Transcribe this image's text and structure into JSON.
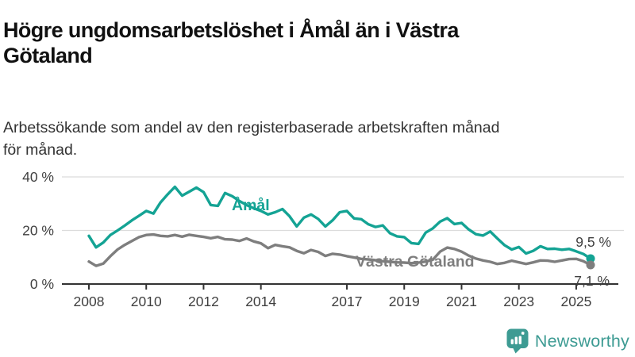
{
  "header": {
    "title": "Högre ungdomsarbetslöshet i Åmål än i Västra Götaland",
    "title_lines": [
      "Högre ungdomsarbetslöshet i Åmål än i Västra",
      "Götaland"
    ],
    "subtitle": "Arbetssökande som andel av den registerbaserade arbetskraften månad för månad.",
    "subtitle_lines": [
      "Arbetssökande som andel av den registerbaserade arbetskraften månad",
      "för månad."
    ]
  },
  "footer": {
    "brand": "Newsworthy",
    "logo_icon": "bar-chart-speech-bubble-icon",
    "brand_color": "#3d9b93"
  },
  "colors": {
    "accent_teal": "#14a394",
    "series_gray": "#7e7e7e",
    "grid": "#dcdcdc",
    "axis": "#333333",
    "label_text": "#3f3f3f"
  },
  "chart_data": {
    "type": "line",
    "title": "",
    "xlabel": "",
    "ylabel": "",
    "grid": "horizontal",
    "legend_position": "inline-labels",
    "x_unit": "decimal_year_monthly_series",
    "xlim": [
      2008,
      2025.5
    ],
    "ylim": [
      0,
      40
    ],
    "yticks": [
      {
        "value": 0,
        "label": "0 %"
      },
      {
        "value": 20,
        "label": "20 %"
      },
      {
        "value": 40,
        "label": "40 %"
      }
    ],
    "xticks": [
      "2008",
      "2010",
      "2012",
      "2014",
      "2017",
      "2019",
      "2021",
      "2023",
      "2025"
    ],
    "xtick_values": [
      2008,
      2010,
      2012,
      2014,
      2017,
      2019,
      2021,
      2023,
      2025
    ],
    "x": [
      2008,
      2008.25,
      2008.5,
      2008.75,
      2009,
      2009.25,
      2009.5,
      2009.75,
      2010,
      2010.25,
      2010.5,
      2010.75,
      2011,
      2011.25,
      2011.5,
      2011.75,
      2012,
      2012.25,
      2012.5,
      2012.75,
      2013,
      2013.25,
      2013.5,
      2013.75,
      2014,
      2014.25,
      2014.5,
      2014.75,
      2015,
      2015.25,
      2015.5,
      2015.75,
      2016,
      2016.25,
      2016.5,
      2016.75,
      2017,
      2017.25,
      2017.5,
      2017.75,
      2018,
      2018.25,
      2018.5,
      2018.75,
      2019,
      2019.25,
      2019.5,
      2019.75,
      2020,
      2020.25,
      2020.5,
      2020.75,
      2021,
      2021.25,
      2021.5,
      2021.75,
      2022,
      2022.25,
      2022.5,
      2022.75,
      2023,
      2023.25,
      2023.5,
      2023.75,
      2024,
      2024.25,
      2024.5,
      2024.75,
      2025,
      2025.25,
      2025.5
    ],
    "series": [
      {
        "name": "Åmål",
        "color": "#14a394",
        "end_label": "9,5 %",
        "end_value": 9.5,
        "values": [
          18.0,
          13.7,
          15.5,
          18.3,
          20.0,
          21.8,
          23.8,
          25.5,
          27.3,
          26.3,
          30.5,
          33.5,
          36.3,
          33.0,
          34.5,
          36.0,
          34.3,
          29.5,
          29.2,
          34.0,
          32.8,
          31.0,
          29.5,
          28.3,
          27.3,
          26.0,
          26.8,
          28.0,
          25.3,
          21.5,
          24.8,
          26.0,
          24.3,
          21.5,
          23.8,
          26.8,
          27.3,
          24.5,
          24.2,
          22.3,
          21.3,
          21.9,
          19.0,
          17.8,
          17.5,
          15.3,
          15.0,
          19.2,
          20.8,
          23.3,
          24.6,
          22.4,
          22.8,
          20.4,
          18.6,
          18.1,
          19.6,
          17.0,
          14.5,
          12.9,
          13.8,
          11.4,
          12.4,
          14.1,
          13.1,
          13.2,
          12.8,
          13.1,
          12.2,
          11.2,
          9.5
        ]
      },
      {
        "name": "Västra Götaland",
        "color": "#7e7e7e",
        "end_label": "7,1 %",
        "end_value": 7.1,
        "values": [
          8.4,
          6.8,
          7.6,
          10.4,
          12.9,
          14.6,
          16.1,
          17.5,
          18.3,
          18.5,
          18.0,
          17.8,
          18.3,
          17.7,
          18.4,
          18.0,
          17.6,
          17.1,
          17.6,
          16.7,
          16.6,
          16.1,
          17.0,
          15.9,
          15.2,
          13.4,
          14.6,
          14.1,
          13.7,
          12.4,
          11.5,
          12.7,
          12.0,
          10.5,
          11.3,
          11.0,
          10.4,
          9.9,
          9.4,
          9.2,
          8.9,
          8.5,
          8.3,
          8.1,
          8.0,
          7.8,
          8.0,
          8.4,
          9.1,
          12.1,
          13.6,
          13.1,
          12.1,
          10.6,
          9.5,
          8.8,
          8.3,
          7.5,
          7.9,
          8.7,
          8.1,
          7.5,
          8.1,
          8.8,
          8.7,
          8.3,
          8.8,
          9.3,
          9.4,
          8.5,
          7.1
        ]
      }
    ]
  }
}
